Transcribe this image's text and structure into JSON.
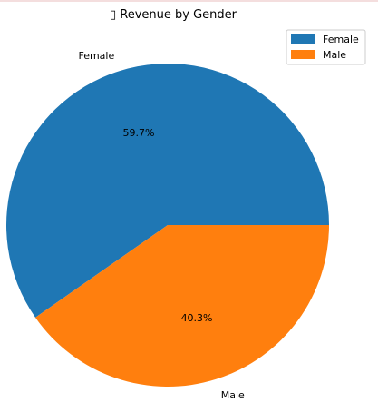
{
  "chart_data": {
    "type": "pie",
    "title": "▯ Revenue by Gender",
    "categories": [
      "Female",
      "Male"
    ],
    "values": [
      59.7,
      40.3
    ],
    "value_labels": [
      "59.7%",
      "40.3%"
    ],
    "colors": [
      "#1f77b4",
      "#ff7f0e"
    ],
    "legend": {
      "placement": "top-right",
      "entries": [
        "Female",
        "Male"
      ]
    }
  }
}
